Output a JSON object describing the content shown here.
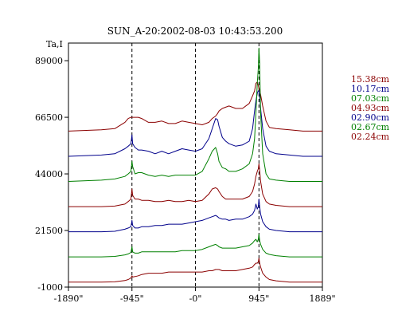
{
  "chart_data": {
    "type": "line",
    "title": "SUN_A-20:2002-08-03 10:43:53.200",
    "ylabel": "Ta,I",
    "xlabel": "",
    "xlim": [
      -1890,
      1889
    ],
    "ylim": [
      -1000,
      96000
    ],
    "x_ticks": [
      {
        "value": -1890,
        "label": "-1890\""
      },
      {
        "value": -945,
        "label": "-945\""
      },
      {
        "value": 0,
        "label": "-0\""
      },
      {
        "value": 945,
        "label": "945\""
      },
      {
        "value": 1889,
        "label": "1889\""
      }
    ],
    "y_ticks": [
      {
        "value": -1000,
        "label": "-1000"
      },
      {
        "value": 21500,
        "label": "21500"
      },
      {
        "value": 44000,
        "label": "44000"
      },
      {
        "value": 66500,
        "label": "66500"
      },
      {
        "value": 89000,
        "label": "89000"
      }
    ],
    "grid": false,
    "vlines_dashed": [
      -945,
      0,
      945
    ],
    "legend_position": "right",
    "x": [
      -1890,
      -1400,
      -1200,
      -1050,
      -1000,
      -960,
      -945,
      -935,
      -900,
      -850,
      -800,
      -700,
      -600,
      -500,
      -400,
      -300,
      -200,
      -100,
      0,
      100,
      200,
      250,
      300,
      330,
      350,
      400,
      450,
      500,
      600,
      700,
      800,
      850,
      880,
      900,
      920,
      935,
      945,
      955,
      970,
      1000,
      1050,
      1100,
      1200,
      1400,
      1600,
      1889
    ],
    "series": [
      {
        "name": "15.38cm",
        "color": "#8b0000",
        "values": [
          61000,
          61500,
          62000,
          64500,
          66000,
          66500,
          66500,
          66500,
          66500,
          66500,
          66000,
          64500,
          64500,
          65000,
          64000,
          64000,
          65000,
          64500,
          64000,
          63500,
          64500,
          66000,
          67000,
          68000,
          69000,
          70000,
          70500,
          71000,
          70000,
          70000,
          72000,
          75000,
          77000,
          80000,
          80500,
          79000,
          78000,
          77500,
          75500,
          71000,
          65000,
          62500,
          62000,
          61500,
          61000,
          61000
        ]
      },
      {
        "name": "10.17cm",
        "color": "#00008b",
        "values": [
          51000,
          51500,
          52000,
          54000,
          55000,
          56000,
          59500,
          56000,
          54500,
          53500,
          53500,
          53000,
          52000,
          53000,
          52000,
          53000,
          54000,
          53500,
          53000,
          54000,
          58000,
          62000,
          66000,
          65500,
          63000,
          58500,
          57000,
          56000,
          55000,
          55500,
          57000,
          62000,
          69000,
          73000,
          76000,
          77000,
          77000,
          75000,
          70000,
          62000,
          55000,
          53000,
          52000,
          51500,
          51000,
          51000
        ]
      },
      {
        "name": "07.03cm",
        "color": "#008000",
        "values": [
          41000,
          41500,
          42000,
          43000,
          44000,
          45000,
          49000,
          47000,
          44000,
          44500,
          44500,
          43500,
          43000,
          43500,
          43000,
          43500,
          43500,
          43500,
          43500,
          45000,
          50000,
          53000,
          54500,
          52000,
          49000,
          46500,
          46000,
          45000,
          45000,
          46000,
          48000,
          52000,
          58000,
          68000,
          80000,
          86000,
          94000,
          88000,
          68000,
          52000,
          44000,
          42000,
          41500,
          41000,
          41000,
          41000
        ]
      },
      {
        "name": "04.93cm",
        "color": "#8b0000",
        "values": [
          31000,
          31000,
          31200,
          32000,
          33000,
          34000,
          38000,
          35500,
          34000,
          34000,
          33500,
          33500,
          33000,
          33000,
          33500,
          33000,
          33000,
          33500,
          33000,
          33500,
          36000,
          38000,
          38500,
          38000,
          37000,
          35000,
          34000,
          34000,
          34000,
          34000,
          35000,
          37000,
          40000,
          43000,
          45000,
          46000,
          48000,
          45500,
          41000,
          36000,
          33000,
          32000,
          31500,
          31000,
          31000,
          31000
        ]
      },
      {
        "name": "02.90cm",
        "color": "#00008b",
        "values": [
          21000,
          21000,
          21200,
          22000,
          22500,
          23000,
          25500,
          23500,
          22500,
          22500,
          23000,
          23000,
          23500,
          23500,
          24000,
          24000,
          24000,
          24500,
          25000,
          25500,
          26500,
          27000,
          27500,
          27000,
          26500,
          26000,
          26000,
          25500,
          26000,
          26000,
          27000,
          28000,
          29500,
          32000,
          30000,
          31000,
          34000,
          31000,
          28000,
          25000,
          23000,
          22000,
          21500,
          21000,
          21000,
          21000
        ]
      },
      {
        "name": "02.67cm",
        "color": "#008000",
        "values": [
          11000,
          11000,
          11200,
          11800,
          12200,
          12800,
          15000,
          13000,
          12500,
          12500,
          13000,
          13000,
          13000,
          13000,
          13000,
          13000,
          13500,
          13500,
          13500,
          14000,
          15000,
          15500,
          16000,
          15500,
          15000,
          14500,
          14500,
          14500,
          14500,
          15000,
          15500,
          16500,
          17500,
          18000,
          17000,
          18000,
          20000,
          17500,
          16000,
          14000,
          12500,
          12000,
          11500,
          11000,
          11000,
          11000
        ]
      },
      {
        "name": "02.24cm",
        "color": "#8b0000",
        "values": [
          1000,
          1000,
          1100,
          1600,
          2000,
          2600,
          3500,
          3000,
          3200,
          3500,
          4000,
          4500,
          4500,
          4500,
          5000,
          5000,
          5000,
          5000,
          5000,
          5000,
          5500,
          5500,
          6000,
          6000,
          6000,
          5500,
          5500,
          5500,
          5500,
          6000,
          6500,
          7000,
          8000,
          8500,
          8500,
          9000,
          10500,
          8500,
          7000,
          4500,
          3000,
          2000,
          1500,
          1000,
          1000,
          1000
        ]
      }
    ]
  }
}
